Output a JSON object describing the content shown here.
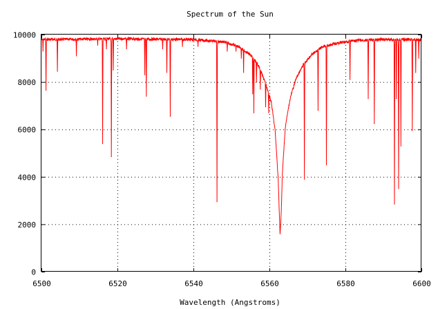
{
  "chart_data": {
    "type": "line",
    "title": "Spectrum of the Sun",
    "xlabel": "Wavelength (Angstroms)",
    "ylabel": "",
    "xlim": [
      6500,
      6600
    ],
    "ylim": [
      0,
      10000
    ],
    "grid": true,
    "grid_style": "dotted",
    "legend": "none",
    "line_color": "#ff0000",
    "x_ticks": [
      "6500",
      "6520",
      "6540",
      "6560",
      "6580",
      "6600"
    ],
    "x_tick_values": [
      6500,
      6520,
      6540,
      6560,
      6580,
      6600
    ],
    "y_ticks": [
      "0",
      "2000",
      "4000",
      "6000",
      "8000",
      "10000"
    ],
    "y_tick_values": [
      0,
      2000,
      4000,
      6000,
      8000,
      10000
    ],
    "series": [
      {
        "continuum": [
          [
            6500,
            9850
          ],
          [
            6520,
            9880
          ],
          [
            6540,
            9850
          ],
          [
            6548,
            9750
          ],
          [
            6552,
            9550
          ],
          [
            6555,
            9200
          ],
          [
            6557,
            8800
          ],
          [
            6559,
            8000
          ],
          [
            6560.5,
            7200
          ],
          [
            6561.5,
            6000
          ],
          [
            6562.3,
            4000
          ],
          [
            6562.6,
            2500
          ],
          [
            6562.8,
            1620
          ],
          [
            6563.1,
            2500
          ],
          [
            6563.4,
            4200
          ],
          [
            6564.2,
            6200
          ],
          [
            6565.5,
            7400
          ],
          [
            6567,
            8200
          ],
          [
            6569,
            8800
          ],
          [
            6571,
            9200
          ],
          [
            6574,
            9550
          ],
          [
            6578,
            9700
          ],
          [
            6582,
            9800
          ],
          [
            6590,
            9850
          ],
          [
            6600,
            9850
          ]
        ],
        "absorption_lines": [
          [
            6500.4,
            9300
          ],
          [
            6501.2,
            7650
          ],
          [
            6504.2,
            8450
          ],
          [
            6509.2,
            9100
          ],
          [
            6514.8,
            9550
          ],
          [
            6516.1,
            5400
          ],
          [
            6517.1,
            9400
          ],
          [
            6518.4,
            4850
          ],
          [
            6518.9,
            8500
          ],
          [
            6522.4,
            9400
          ],
          [
            6527.2,
            8300
          ],
          [
            6527.6,
            7400
          ],
          [
            6531.9,
            9400
          ],
          [
            6533.0,
            8400
          ],
          [
            6533.9,
            6550
          ],
          [
            6537.1,
            9500
          ],
          [
            6541.2,
            9500
          ],
          [
            6546.2,
            2950
          ],
          [
            6548.9,
            9300
          ],
          [
            6551.2,
            9300
          ],
          [
            6552.6,
            9000
          ],
          [
            6553.2,
            8400
          ],
          [
            6555.6,
            7500
          ],
          [
            6555.9,
            6700
          ],
          [
            6556.6,
            8000
          ],
          [
            6557.6,
            7700
          ],
          [
            6558.3,
            8200
          ],
          [
            6559.0,
            6950
          ],
          [
            6559.8,
            6700
          ],
          [
            6563.9,
            5400
          ],
          [
            6569.2,
            3900
          ],
          [
            6572.8,
            6800
          ],
          [
            6575.0,
            4500
          ],
          [
            6581.2,
            8100
          ],
          [
            6586.0,
            7300
          ],
          [
            6587.6,
            6250
          ],
          [
            6592.9,
            2850
          ],
          [
            6593.4,
            7300
          ],
          [
            6594.0,
            3500
          ],
          [
            6594.6,
            5300
          ],
          [
            6597.6,
            5950
          ],
          [
            6598.5,
            8400
          ],
          [
            6599.3,
            9000
          ]
        ]
      }
    ]
  }
}
